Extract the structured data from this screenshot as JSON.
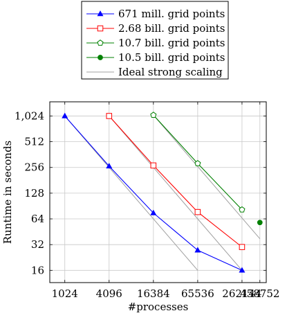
{
  "chart_data": {
    "type": "line",
    "xscale": "log2",
    "yscale": "log2",
    "xlabel": "#processes",
    "ylabel": "Runtime in seconds",
    "x_ticks": [
      1024,
      4096,
      16384,
      65536,
      262144,
      458752
    ],
    "x_tick_labels": [
      "1024",
      "4096",
      "16384",
      "65536",
      "262144",
      "458752"
    ],
    "y_ticks": [
      16,
      32,
      64,
      128,
      256,
      512,
      1024
    ],
    "y_tick_labels": [
      "16",
      "32",
      "64",
      "128",
      "256",
      "512",
      "1,024"
    ],
    "xlim": [
      640,
      560000
    ],
    "ylim": [
      11.5,
      1500
    ],
    "grid": true,
    "legend_position": "top-center",
    "series": [
      {
        "name": "671 mill. grid points",
        "color": "#0000ff",
        "marker": "filled-triangle",
        "x": [
          1024,
          4096,
          16384,
          65536,
          262144
        ],
        "y": [
          1024,
          265,
          75,
          27.5,
          16
        ]
      },
      {
        "name": "2.68 bill. grid points",
        "color": "#ff0000",
        "marker": "open-square",
        "x": [
          4096,
          16384,
          65536,
          262144
        ],
        "y": [
          1024,
          270,
          77,
          30
        ]
      },
      {
        "name": "10.7 bill. grid points",
        "color": "#008000",
        "marker": "open-pentagon",
        "x": [
          16384,
          65536,
          262144
        ],
        "y": [
          1050,
          285,
          82
        ]
      },
      {
        "name": "10.5 bill. grid points",
        "color": "#008000",
        "marker": "filled-circle",
        "x": [
          458752
        ],
        "y": [
          58
        ]
      }
    ],
    "ideal_lines": {
      "name": "Ideal strong scaling",
      "color": "#a0a0a0",
      "lines": [
        {
          "x": [
            1024,
            65536
          ],
          "y": [
            1024,
            16
          ]
        },
        {
          "x": [
            4096,
            262144
          ],
          "y": [
            1024,
            16
          ]
        },
        {
          "x": [
            16384,
            458752
          ],
          "y": [
            1050,
            37.5
          ]
        }
      ]
    }
  }
}
